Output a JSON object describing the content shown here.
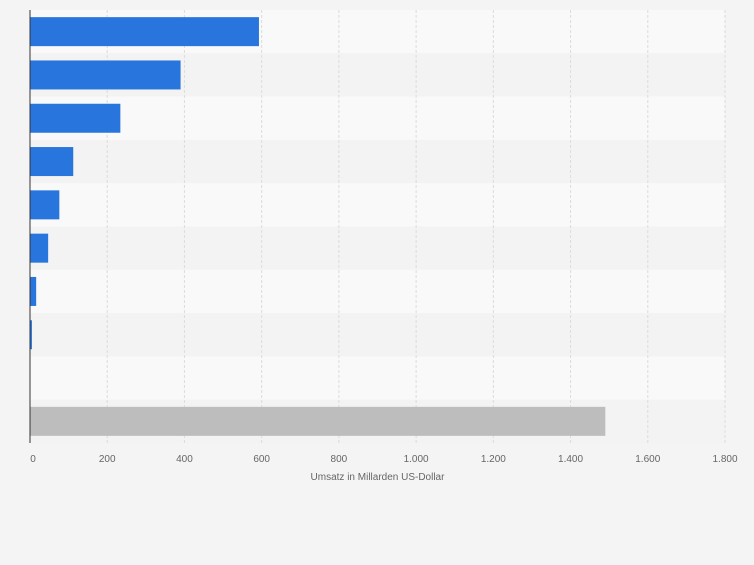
{
  "chart_data": {
    "type": "bar",
    "orientation": "horizontal",
    "categories": [
      "",
      "",
      "",
      "",
      "",
      "",
      "",
      "",
      "",
      ""
    ],
    "values": [
      593,
      390,
      234,
      112,
      76,
      47,
      16,
      5,
      0,
      1490
    ],
    "highlight_indices": [
      9
    ],
    "xlabel": "Umsatz in Millarden US-Dollar",
    "ylabel": "",
    "xlim": [
      0,
      1800
    ],
    "ticks": [
      0,
      200,
      400,
      600,
      800,
      1000,
      1200,
      1400,
      1600,
      1800
    ],
    "tick_labels": [
      "0",
      "200",
      "400",
      "600",
      "800",
      "1.000",
      "1.200",
      "1.400",
      "1.600",
      "1.800"
    ],
    "grid": true,
    "colors": {
      "bar": "#2876dd",
      "highlight": "#bdbdbd",
      "row_light": "#f9f9f9",
      "row_dark": "#f3f3f3",
      "grid": "#dcdcdc",
      "text": "#666666",
      "axis": "#333333"
    }
  }
}
